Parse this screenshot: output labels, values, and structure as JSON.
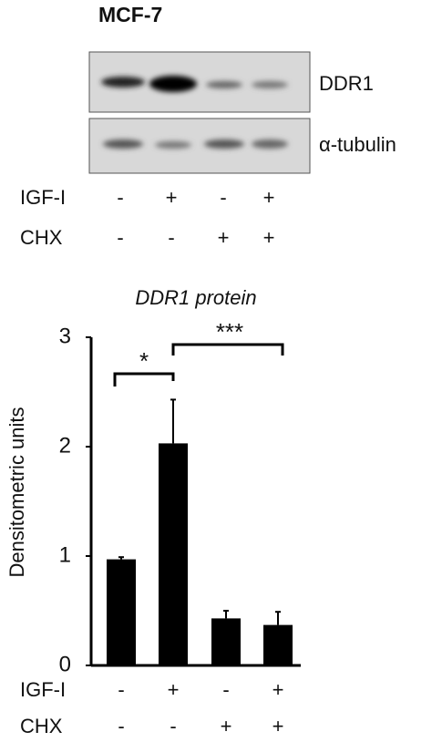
{
  "blot": {
    "title": "MCF-7",
    "bands": [
      "DDR1",
      "α-tubulin"
    ],
    "conditions": [
      {
        "name": "IGF-I",
        "values": [
          "-",
          "+",
          "-",
          "+"
        ]
      },
      {
        "name": "CHX",
        "values": [
          "-",
          "-",
          "+",
          "+"
        ]
      }
    ]
  },
  "chart_data": {
    "type": "bar",
    "title": "DDR1 protein",
    "y_label": "Densitometric units",
    "values": [
      0.97,
      2.03,
      0.43,
      0.37
    ],
    "errors": [
      0.02,
      0.4,
      0.07,
      0.12
    ],
    "color": "#000000",
    "ylim": [
      0,
      3
    ],
    "yticks": [
      0,
      1,
      2,
      3
    ],
    "conditions": [
      {
        "name": "IGF-I",
        "values": [
          "-",
          "+",
          "-",
          "+"
        ]
      },
      {
        "name": "CHX",
        "values": [
          "-",
          "-",
          "+",
          "+"
        ]
      }
    ],
    "annotations": [
      "*",
      "***"
    ]
  }
}
